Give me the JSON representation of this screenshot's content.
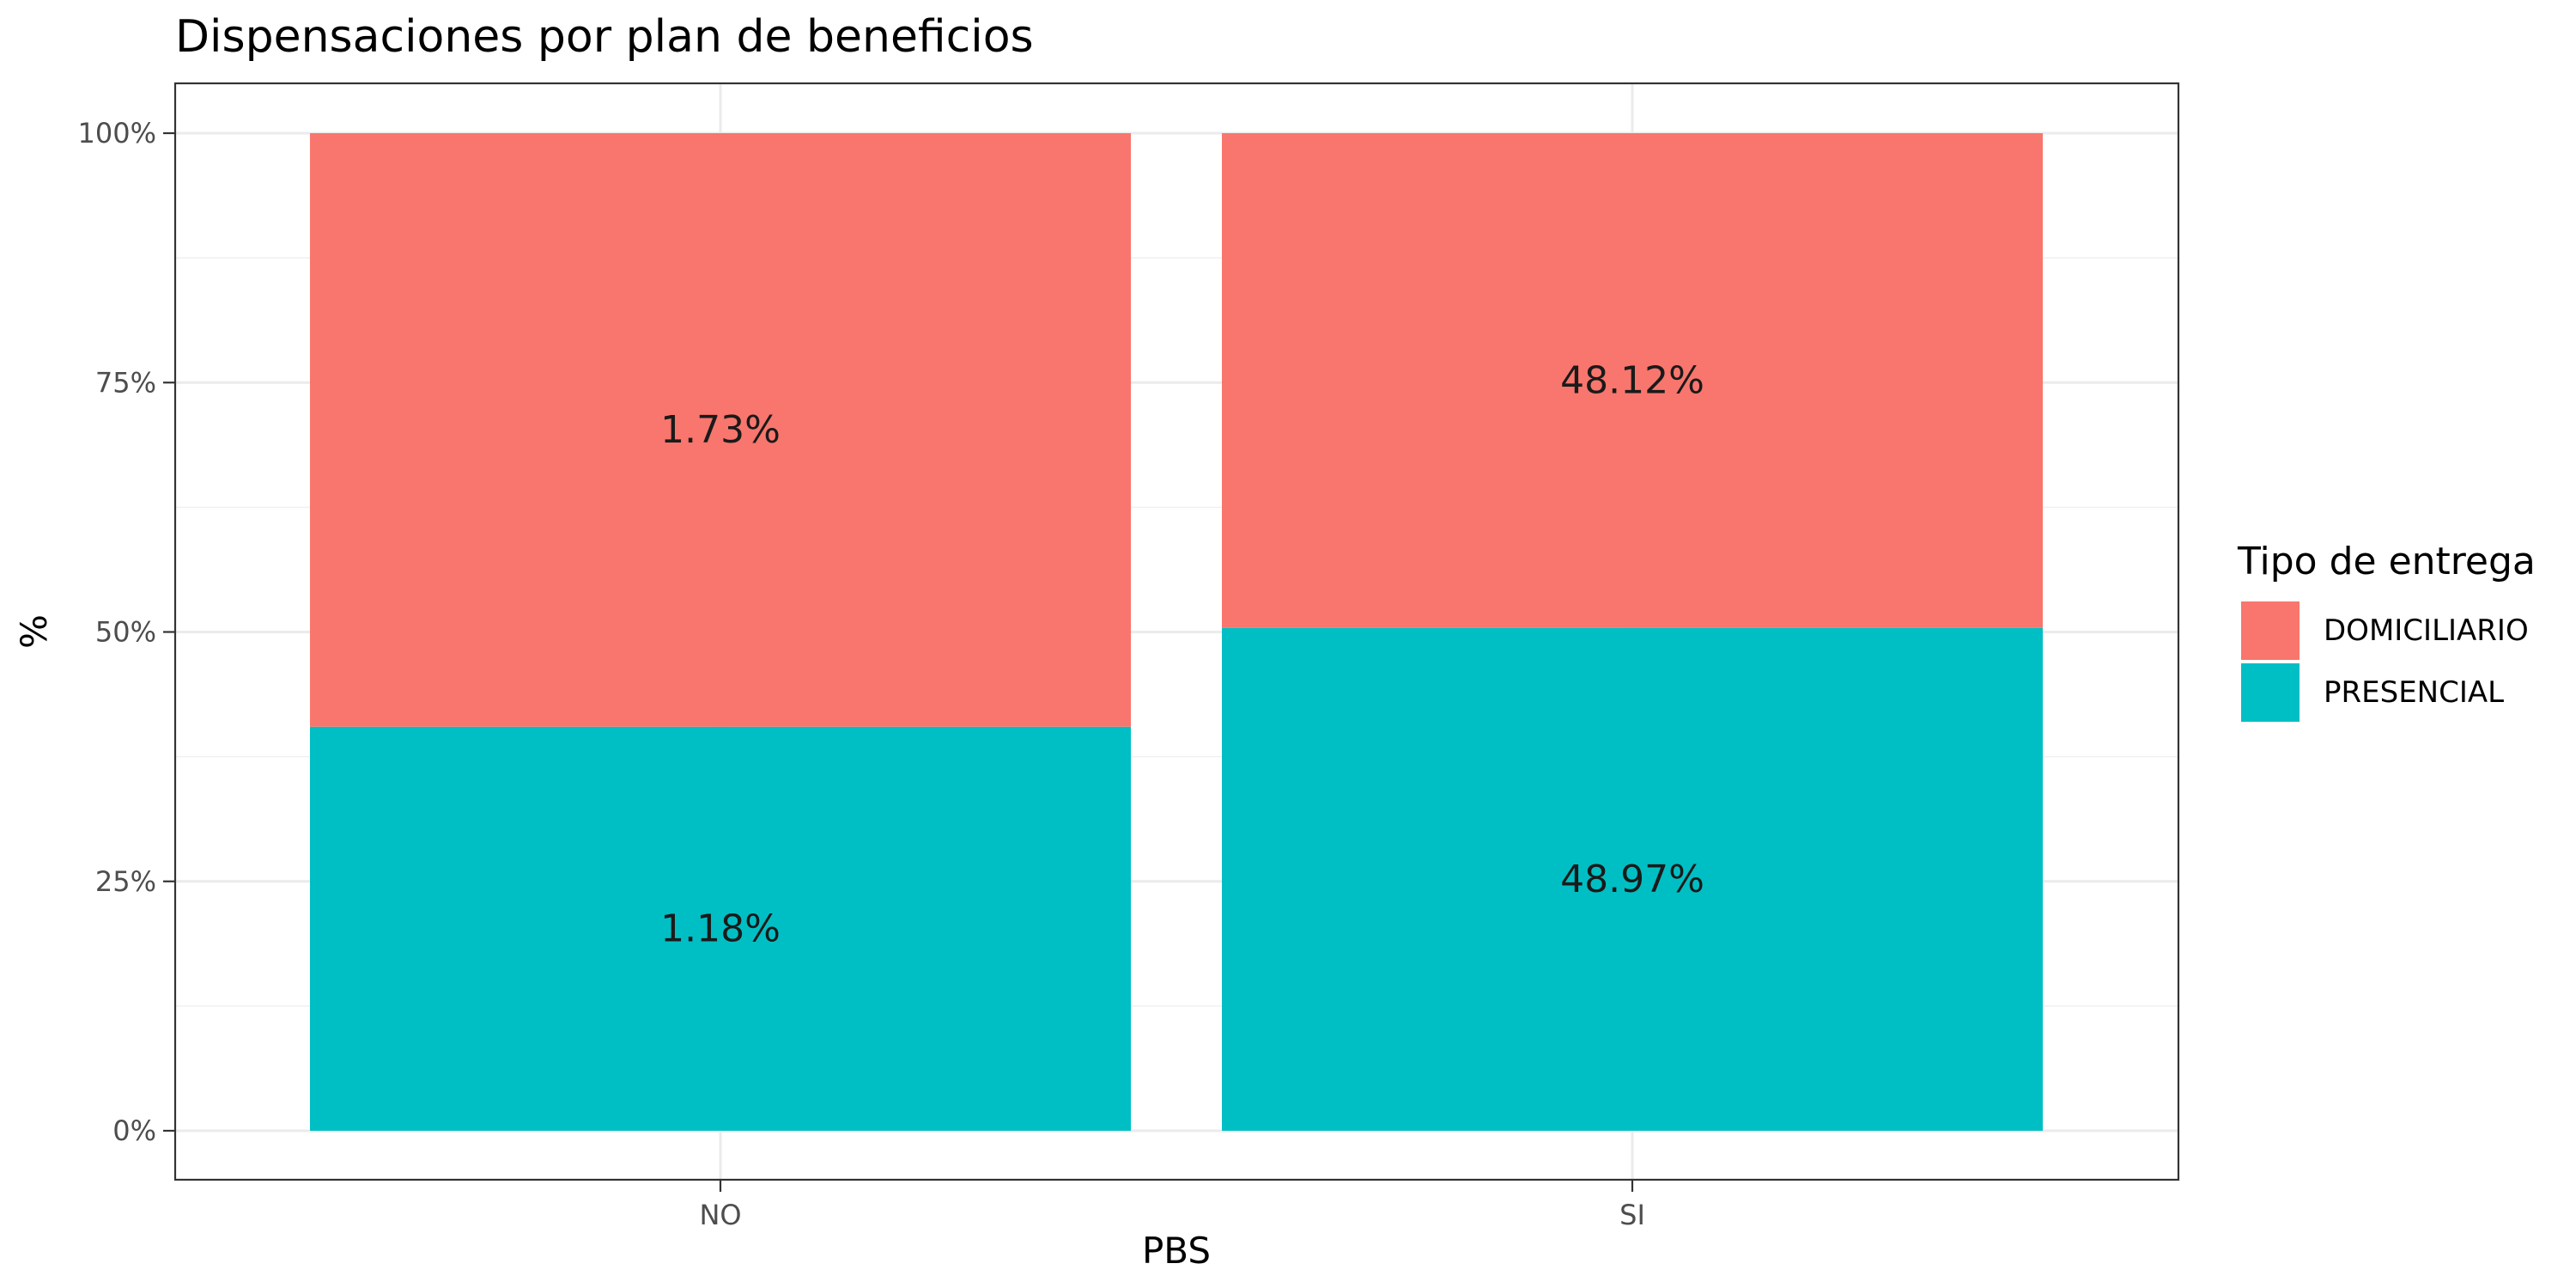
{
  "chart_data": {
    "type": "bar",
    "stacked": true,
    "normalized": true,
    "title": "Dispensaciones por plan de beneficios",
    "xlabel": "PBS",
    "ylabel": "%",
    "categories": [
      "NO",
      "SI"
    ],
    "ylim": [
      0,
      1
    ],
    "yticks": [
      0,
      0.25,
      0.5,
      0.75,
      1
    ],
    "ytick_labels": [
      "0%",
      "25%",
      "50%",
      "75%",
      "100%"
    ],
    "grid": true,
    "legend": {
      "title": "Tipo de entrega",
      "position": "right"
    },
    "series": [
      {
        "name": "PRESENCIAL",
        "color": "#00BFC4",
        "values": [
          0.405,
          0.504
        ],
        "labels": [
          "1.18%",
          "48.97%"
        ]
      },
      {
        "name": "DOMICILIARIO",
        "color": "#F8766D",
        "values": [
          0.595,
          0.496
        ],
        "labels": [
          "1.73%",
          "48.12%"
        ]
      }
    ]
  }
}
